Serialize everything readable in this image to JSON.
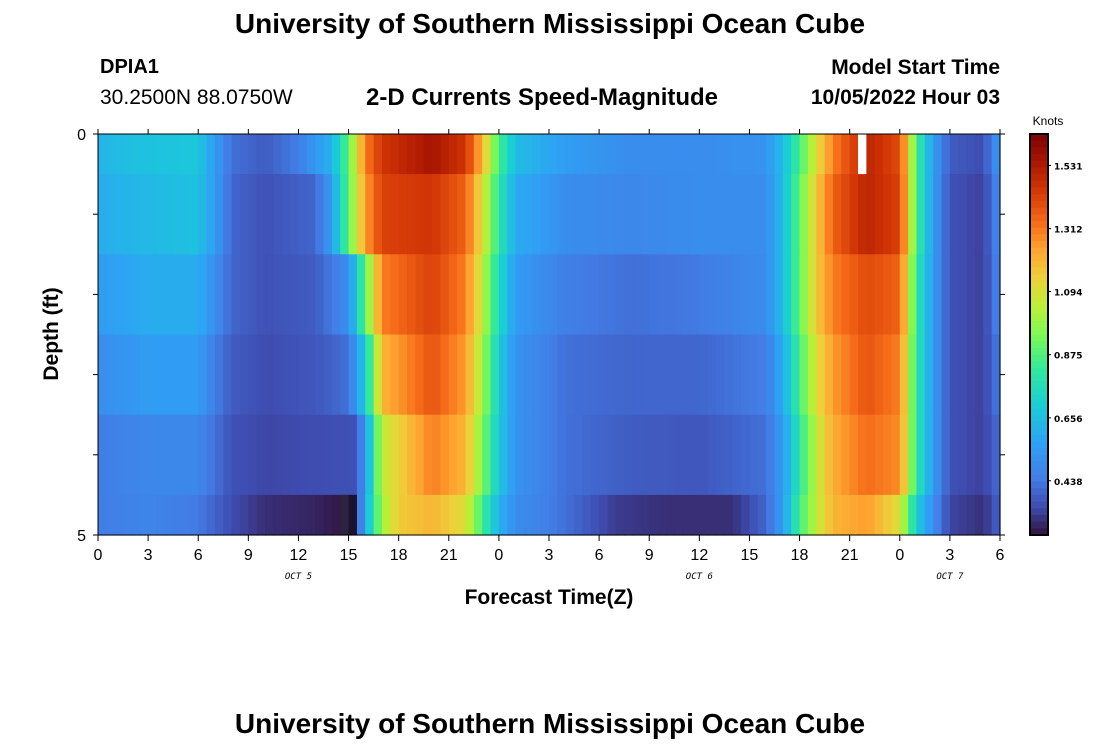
{
  "header": {
    "title": "University of Southern Mississippi Ocean Cube",
    "station": "DPIA1",
    "coords": "30.2500N  88.0750W",
    "subtitle": "2-D Currents Speed-Magnitude",
    "model_start_label": "Model Start Time",
    "model_start_value": "10/05/2022 Hour 03"
  },
  "footer": {
    "title": "University of Southern Mississippi Ocean Cube"
  },
  "chart_data": {
    "type": "heatmap",
    "title": "2-D Currents Speed-Magnitude",
    "xlabel": "Forecast Time(Z)",
    "ylabel": "Depth (ft)",
    "x_tick_labels": [
      "0",
      "3",
      "6",
      "9",
      "12",
      "15",
      "18",
      "21",
      "0",
      "3",
      "6",
      "9",
      "12",
      "15",
      "18",
      "21",
      "0",
      "3",
      "6"
    ],
    "x_range_hours": [
      0,
      54
    ],
    "y_tick_labels": [
      "0",
      "5"
    ],
    "ylim": [
      0,
      5
    ],
    "day_labels": [
      {
        "label": "OCT 5",
        "hour": 12
      },
      {
        "label": "OCT 6",
        "hour": 36
      },
      {
        "label": "OCT 7",
        "hour": 51
      }
    ],
    "colorbar": {
      "unit": "Knots",
      "ticks": [
        "1.531",
        "1.312",
        "1.094",
        "0.875",
        "0.656",
        "0.438"
      ],
      "min": 0.25,
      "max": 1.64
    },
    "time_step_hours": 0.5,
    "layers": [
      {
        "depth_from": 0.0,
        "depth_to": 0.5,
        "keyframes": [
          [
            0,
            0.62
          ],
          [
            2,
            0.66
          ],
          [
            6,
            0.68
          ],
          [
            7,
            0.55
          ],
          [
            8,
            0.42
          ],
          [
            10,
            0.38
          ],
          [
            12,
            0.45
          ],
          [
            14,
            0.62
          ],
          [
            15,
            0.9
          ],
          [
            16,
            1.3
          ],
          [
            17,
            1.45
          ],
          [
            20,
            1.55
          ],
          [
            22,
            1.45
          ],
          [
            23,
            1.2
          ],
          [
            24,
            0.85
          ],
          [
            25,
            0.65
          ],
          [
            28,
            0.55
          ],
          [
            32,
            0.5
          ],
          [
            36,
            0.5
          ],
          [
            40,
            0.52
          ],
          [
            41,
            0.65
          ],
          [
            42,
            0.85
          ],
          [
            43,
            1.1
          ],
          [
            44,
            1.3
          ],
          [
            46,
            1.5
          ],
          [
            48,
            1.4
          ],
          [
            48.5,
            1.15
          ],
          [
            49,
            0.85
          ],
          [
            50,
            0.55
          ],
          [
            51,
            0.38
          ],
          [
            53,
            0.35
          ],
          [
            54,
            0.55
          ]
        ]
      },
      {
        "depth_from": 0.5,
        "depth_to": 1.5,
        "keyframes": [
          [
            0,
            0.6
          ],
          [
            3,
            0.64
          ],
          [
            6,
            0.66
          ],
          [
            7,
            0.55
          ],
          [
            8,
            0.4
          ],
          [
            10,
            0.36
          ],
          [
            13,
            0.4
          ],
          [
            14,
            0.55
          ],
          [
            15,
            0.9
          ],
          [
            16,
            1.25
          ],
          [
            17,
            1.42
          ],
          [
            20,
            1.45
          ],
          [
            22,
            1.35
          ],
          [
            23,
            1.1
          ],
          [
            24,
            0.8
          ],
          [
            25,
            0.6
          ],
          [
            28,
            0.5
          ],
          [
            32,
            0.48
          ],
          [
            36,
            0.5
          ],
          [
            40,
            0.5
          ],
          [
            41,
            0.65
          ],
          [
            42,
            0.9
          ],
          [
            43,
            1.15
          ],
          [
            44,
            1.35
          ],
          [
            46,
            1.5
          ],
          [
            48,
            1.42
          ],
          [
            48.5,
            1.15
          ],
          [
            49,
            0.85
          ],
          [
            50,
            0.55
          ],
          [
            51,
            0.36
          ],
          [
            53,
            0.33
          ],
          [
            54,
            0.5
          ]
        ]
      },
      {
        "depth_from": 1.5,
        "depth_to": 2.5,
        "keyframes": [
          [
            0,
            0.55
          ],
          [
            3,
            0.6
          ],
          [
            6,
            0.6
          ],
          [
            7,
            0.5
          ],
          [
            8,
            0.4
          ],
          [
            10,
            0.36
          ],
          [
            13,
            0.38
          ],
          [
            15,
            0.5
          ],
          [
            16,
            0.9
          ],
          [
            17,
            1.3
          ],
          [
            20,
            1.42
          ],
          [
            22,
            1.3
          ],
          [
            23,
            1.05
          ],
          [
            24,
            0.75
          ],
          [
            25,
            0.55
          ],
          [
            28,
            0.45
          ],
          [
            32,
            0.42
          ],
          [
            36,
            0.44
          ],
          [
            40,
            0.5
          ],
          [
            41,
            0.65
          ],
          [
            42,
            0.9
          ],
          [
            43,
            1.15
          ],
          [
            44,
            1.3
          ],
          [
            46,
            1.4
          ],
          [
            48,
            1.35
          ],
          [
            48.5,
            1.1
          ],
          [
            49,
            0.8
          ],
          [
            50,
            0.55
          ],
          [
            51,
            0.36
          ],
          [
            53,
            0.33
          ],
          [
            54,
            0.48
          ]
        ]
      },
      {
        "depth_from": 2.5,
        "depth_to": 3.5,
        "keyframes": [
          [
            0,
            0.5
          ],
          [
            3,
            0.55
          ],
          [
            6,
            0.55
          ],
          [
            7,
            0.45
          ],
          [
            8,
            0.38
          ],
          [
            10,
            0.35
          ],
          [
            13,
            0.37
          ],
          [
            15,
            0.42
          ],
          [
            16,
            0.7
          ],
          [
            17,
            1.2
          ],
          [
            20,
            1.38
          ],
          [
            22,
            1.25
          ],
          [
            23,
            1.0
          ],
          [
            24,
            0.7
          ],
          [
            25,
            0.52
          ],
          [
            28,
            0.42
          ],
          [
            32,
            0.4
          ],
          [
            36,
            0.4
          ],
          [
            40,
            0.45
          ],
          [
            41,
            0.6
          ],
          [
            42,
            0.85
          ],
          [
            43,
            1.1
          ],
          [
            44,
            1.25
          ],
          [
            46,
            1.38
          ],
          [
            48,
            1.3
          ],
          [
            48.5,
            1.05
          ],
          [
            49,
            0.8
          ],
          [
            50,
            0.55
          ],
          [
            51,
            0.36
          ],
          [
            53,
            0.33
          ],
          [
            54,
            0.45
          ]
        ]
      },
      {
        "depth_from": 3.5,
        "depth_to": 4.5,
        "keyframes": [
          [
            0,
            0.45
          ],
          [
            3,
            0.48
          ],
          [
            6,
            0.48
          ],
          [
            7,
            0.42
          ],
          [
            8,
            0.36
          ],
          [
            10,
            0.34
          ],
          [
            13,
            0.35
          ],
          [
            15.5,
            0.36
          ],
          [
            16,
            0.55
          ],
          [
            17,
            1.05
          ],
          [
            20,
            1.3
          ],
          [
            22,
            1.2
          ],
          [
            23,
            0.95
          ],
          [
            24,
            0.68
          ],
          [
            25,
            0.52
          ],
          [
            28,
            0.42
          ],
          [
            32,
            0.38
          ],
          [
            36,
            0.37
          ],
          [
            40,
            0.42
          ],
          [
            41,
            0.55
          ],
          [
            42,
            0.8
          ],
          [
            43,
            1.05
          ],
          [
            44,
            1.22
          ],
          [
            46,
            1.33
          ],
          [
            48,
            1.28
          ],
          [
            48.5,
            1.05
          ],
          [
            49,
            0.8
          ],
          [
            50,
            0.55
          ],
          [
            51,
            0.36
          ],
          [
            53,
            0.33
          ],
          [
            54,
            0.42
          ]
        ]
      },
      {
        "depth_from": 4.5,
        "depth_to": 5.0,
        "keyframes": [
          [
            0,
            0.45
          ],
          [
            3,
            0.47
          ],
          [
            6,
            0.44
          ],
          [
            8,
            0.35
          ],
          [
            10,
            0.3
          ],
          [
            13,
            0.28
          ],
          [
            14.5,
            0.26
          ],
          [
            15,
            0.25
          ],
          [
            15.5,
            0.32
          ],
          [
            16,
            0.6
          ],
          [
            17,
            1.0
          ],
          [
            18,
            1.15
          ],
          [
            20,
            1.2
          ],
          [
            22,
            1.1
          ],
          [
            23,
            0.85
          ],
          [
            24,
            0.62
          ],
          [
            25,
            0.5
          ],
          [
            28,
            0.42
          ],
          [
            31,
            0.32
          ],
          [
            34,
            0.3
          ],
          [
            38,
            0.3
          ],
          [
            40,
            0.4
          ],
          [
            41,
            0.55
          ],
          [
            42,
            0.85
          ],
          [
            43,
            1.05
          ],
          [
            44,
            1.2
          ],
          [
            46,
            1.25
          ],
          [
            48,
            1.1
          ],
          [
            48.5,
            0.9
          ],
          [
            49,
            0.7
          ],
          [
            50,
            0.5
          ],
          [
            51,
            0.34
          ],
          [
            53,
            0.3
          ],
          [
            54,
            0.4
          ]
        ]
      }
    ],
    "special_cells": [
      {
        "hour_start": 14.5,
        "hour_end": 15.0,
        "depth_from": 4.5,
        "depth_to": 5.0,
        "color": "#2a2440"
      },
      {
        "hour_start": 15.0,
        "hour_end": 15.5,
        "depth_from": 4.5,
        "depth_to": 5.0,
        "color": "#1c1330"
      },
      {
        "hour_start": 45.5,
        "hour_end": 46.0,
        "depth_from": 0.0,
        "depth_to": 0.5,
        "color": "#ffffff"
      }
    ]
  }
}
